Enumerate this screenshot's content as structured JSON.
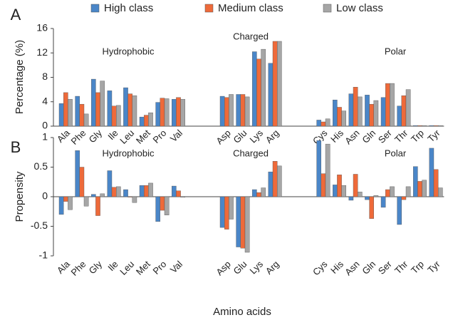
{
  "chart_data": [
    {
      "type": "bar",
      "panel_label": "A",
      "ylabel": "Percentage (%)",
      "annotations": [
        "Hydrophobic",
        "Charged",
        "Polar"
      ],
      "categories": [
        "Ala",
        "Phe",
        "Gly",
        "Ile",
        "Leu",
        "Met",
        "Pro",
        "Val",
        null,
        null,
        "Asp",
        "Glu",
        "Lys",
        "Arg",
        null,
        null,
        "Cys",
        "His",
        "Asn",
        "Gln",
        "Ser",
        "Thr",
        "Trp",
        "Tyr"
      ],
      "series": [
        {
          "name": "High class",
          "color": "#4a86c8",
          "values": [
            3.7,
            4.9,
            7.7,
            5.8,
            6.3,
            1.5,
            3.9,
            4.4,
            null,
            null,
            4.9,
            5.2,
            12.2,
            10.3,
            null,
            null,
            1.0,
            4.3,
            5.3,
            5.1,
            4.7,
            3.3,
            0.1,
            0.1
          ]
        },
        {
          "name": "Medium class",
          "color": "#ee6a3a",
          "values": [
            5.5,
            3.6,
            5.5,
            3.3,
            5.3,
            1.8,
            4.6,
            4.7,
            null,
            null,
            4.7,
            5.2,
            11.0,
            13.9,
            null,
            null,
            0.7,
            3.1,
            6.4,
            3.6,
            7.0,
            5.0,
            0.1,
            0.1
          ]
        },
        {
          "name": "Low class",
          "color": "#a6a6a6",
          "values": [
            4.4,
            2.0,
            7.4,
            3.4,
            5.0,
            2.2,
            4.5,
            4.4,
            null,
            null,
            5.2,
            4.8,
            12.6,
            13.9,
            null,
            null,
            1.2,
            2.5,
            4.8,
            4.2,
            7.0,
            6.0,
            0.1,
            0.1
          ]
        }
      ],
      "ylim": [
        0,
        16
      ],
      "yticks": [
        0,
        4,
        8,
        12,
        16
      ]
    },
    {
      "type": "bar",
      "panel_label": "B",
      "ylabel": "Propensity",
      "xlabel": "Amino acids",
      "annotations": [
        "Hydrophobic",
        "Charged",
        "Polar"
      ],
      "categories": [
        "Ala",
        "Phe",
        "Gly",
        "Ile",
        "Leu",
        "Met",
        "Pro",
        "Val",
        null,
        null,
        "Asp",
        "Glu",
        "Lys",
        "Arg",
        null,
        null,
        "Cys",
        "His",
        "Asn",
        "Gln",
        "Ser",
        "Thr",
        "Trp",
        "Tyr"
      ],
      "series": [
        {
          "color": "#4a86c8",
          "values": [
            -0.3,
            0.78,
            0.04,
            0.44,
            0.12,
            0.19,
            -0.42,
            0.18,
            null,
            null,
            -0.52,
            -0.85,
            0.12,
            0.42,
            null,
            null,
            0.95,
            0.2,
            -0.06,
            -0.05,
            -0.18,
            -0.47,
            0.51,
            0.82
          ]
        },
        {
          "color": "#ee6a3a",
          "values": [
            -0.08,
            0.5,
            -0.32,
            0.16,
            0,
            0.19,
            -0.23,
            0.1,
            null,
            null,
            -0.55,
            -0.87,
            0.07,
            0.6,
            null,
            null,
            0.39,
            0.37,
            0.38,
            -0.37,
            0.12,
            -0.05,
            0.26,
            0.46
          ]
        },
        {
          "color": "#a6a6a6",
          "values": [
            -0.22,
            -0.16,
            0.05,
            0.17,
            -0.1,
            0.23,
            -0.31,
            -0.01,
            null,
            null,
            -0.38,
            -0.94,
            0.15,
            0.52,
            null,
            null,
            0.89,
            0.19,
            0.08,
            0.02,
            0.17,
            0.17,
            0.28,
            0.15
          ]
        }
      ],
      "ylim": [
        -1,
        1
      ],
      "yticks": [
        -1,
        -0.5,
        0,
        0.5,
        1
      ]
    }
  ]
}
